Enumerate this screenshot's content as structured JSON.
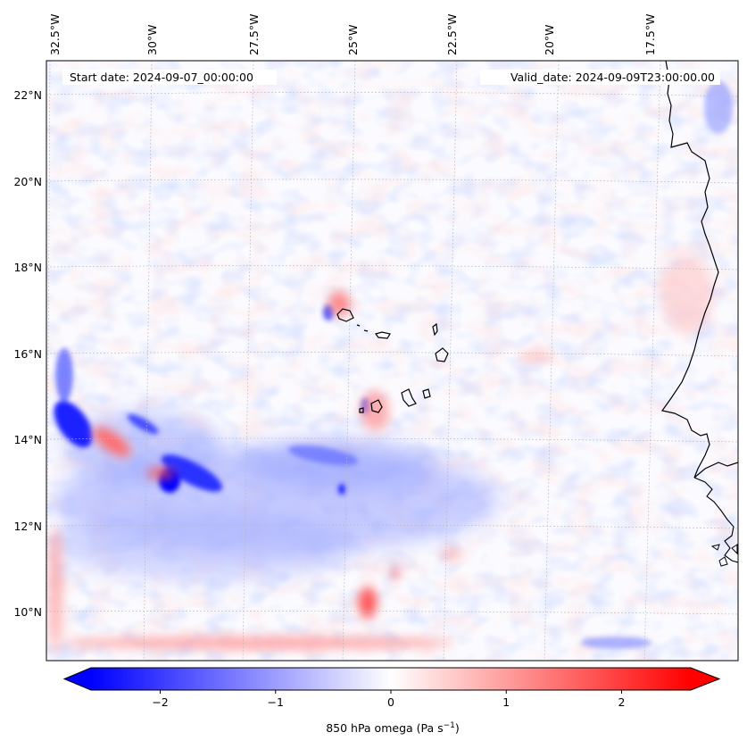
{
  "map": {
    "start_date_label": "Start date: 2024-09-07_00:00:00",
    "valid_date_label": "Valid_date: 2024-09-09T23:00:00.00",
    "lon_ticks": [
      "32.5°W",
      "30°W",
      "27.5°W",
      "25°W",
      "22.5°W",
      "20°W",
      "17.5°W"
    ],
    "lat_ticks": [
      "22°N",
      "20°N",
      "18°N",
      "16°N",
      "14°N",
      "12°N",
      "10°N"
    ],
    "gridlines": true,
    "projection_lat_range": [
      8.9,
      22.8
    ],
    "projection_lon_range": [
      -33.0,
      -15.8
    ]
  },
  "colorbar": {
    "label_main": "850 hPa omega (Pa s",
    "label_exp": "−1",
    "label_close": ")",
    "colormap": "bwr",
    "range": [
      -2.6,
      2.6
    ],
    "extend": "both",
    "ticks": [
      "−2",
      "−1",
      "0",
      "1",
      "2"
    ],
    "tick_values": [
      -2,
      -1,
      0,
      1,
      2
    ]
  },
  "colors": {
    "negative": "#0000ff",
    "zero": "#ffffff",
    "positive": "#ff0000",
    "coastline": "#000000",
    "gridline": "#b0b0b0"
  }
}
